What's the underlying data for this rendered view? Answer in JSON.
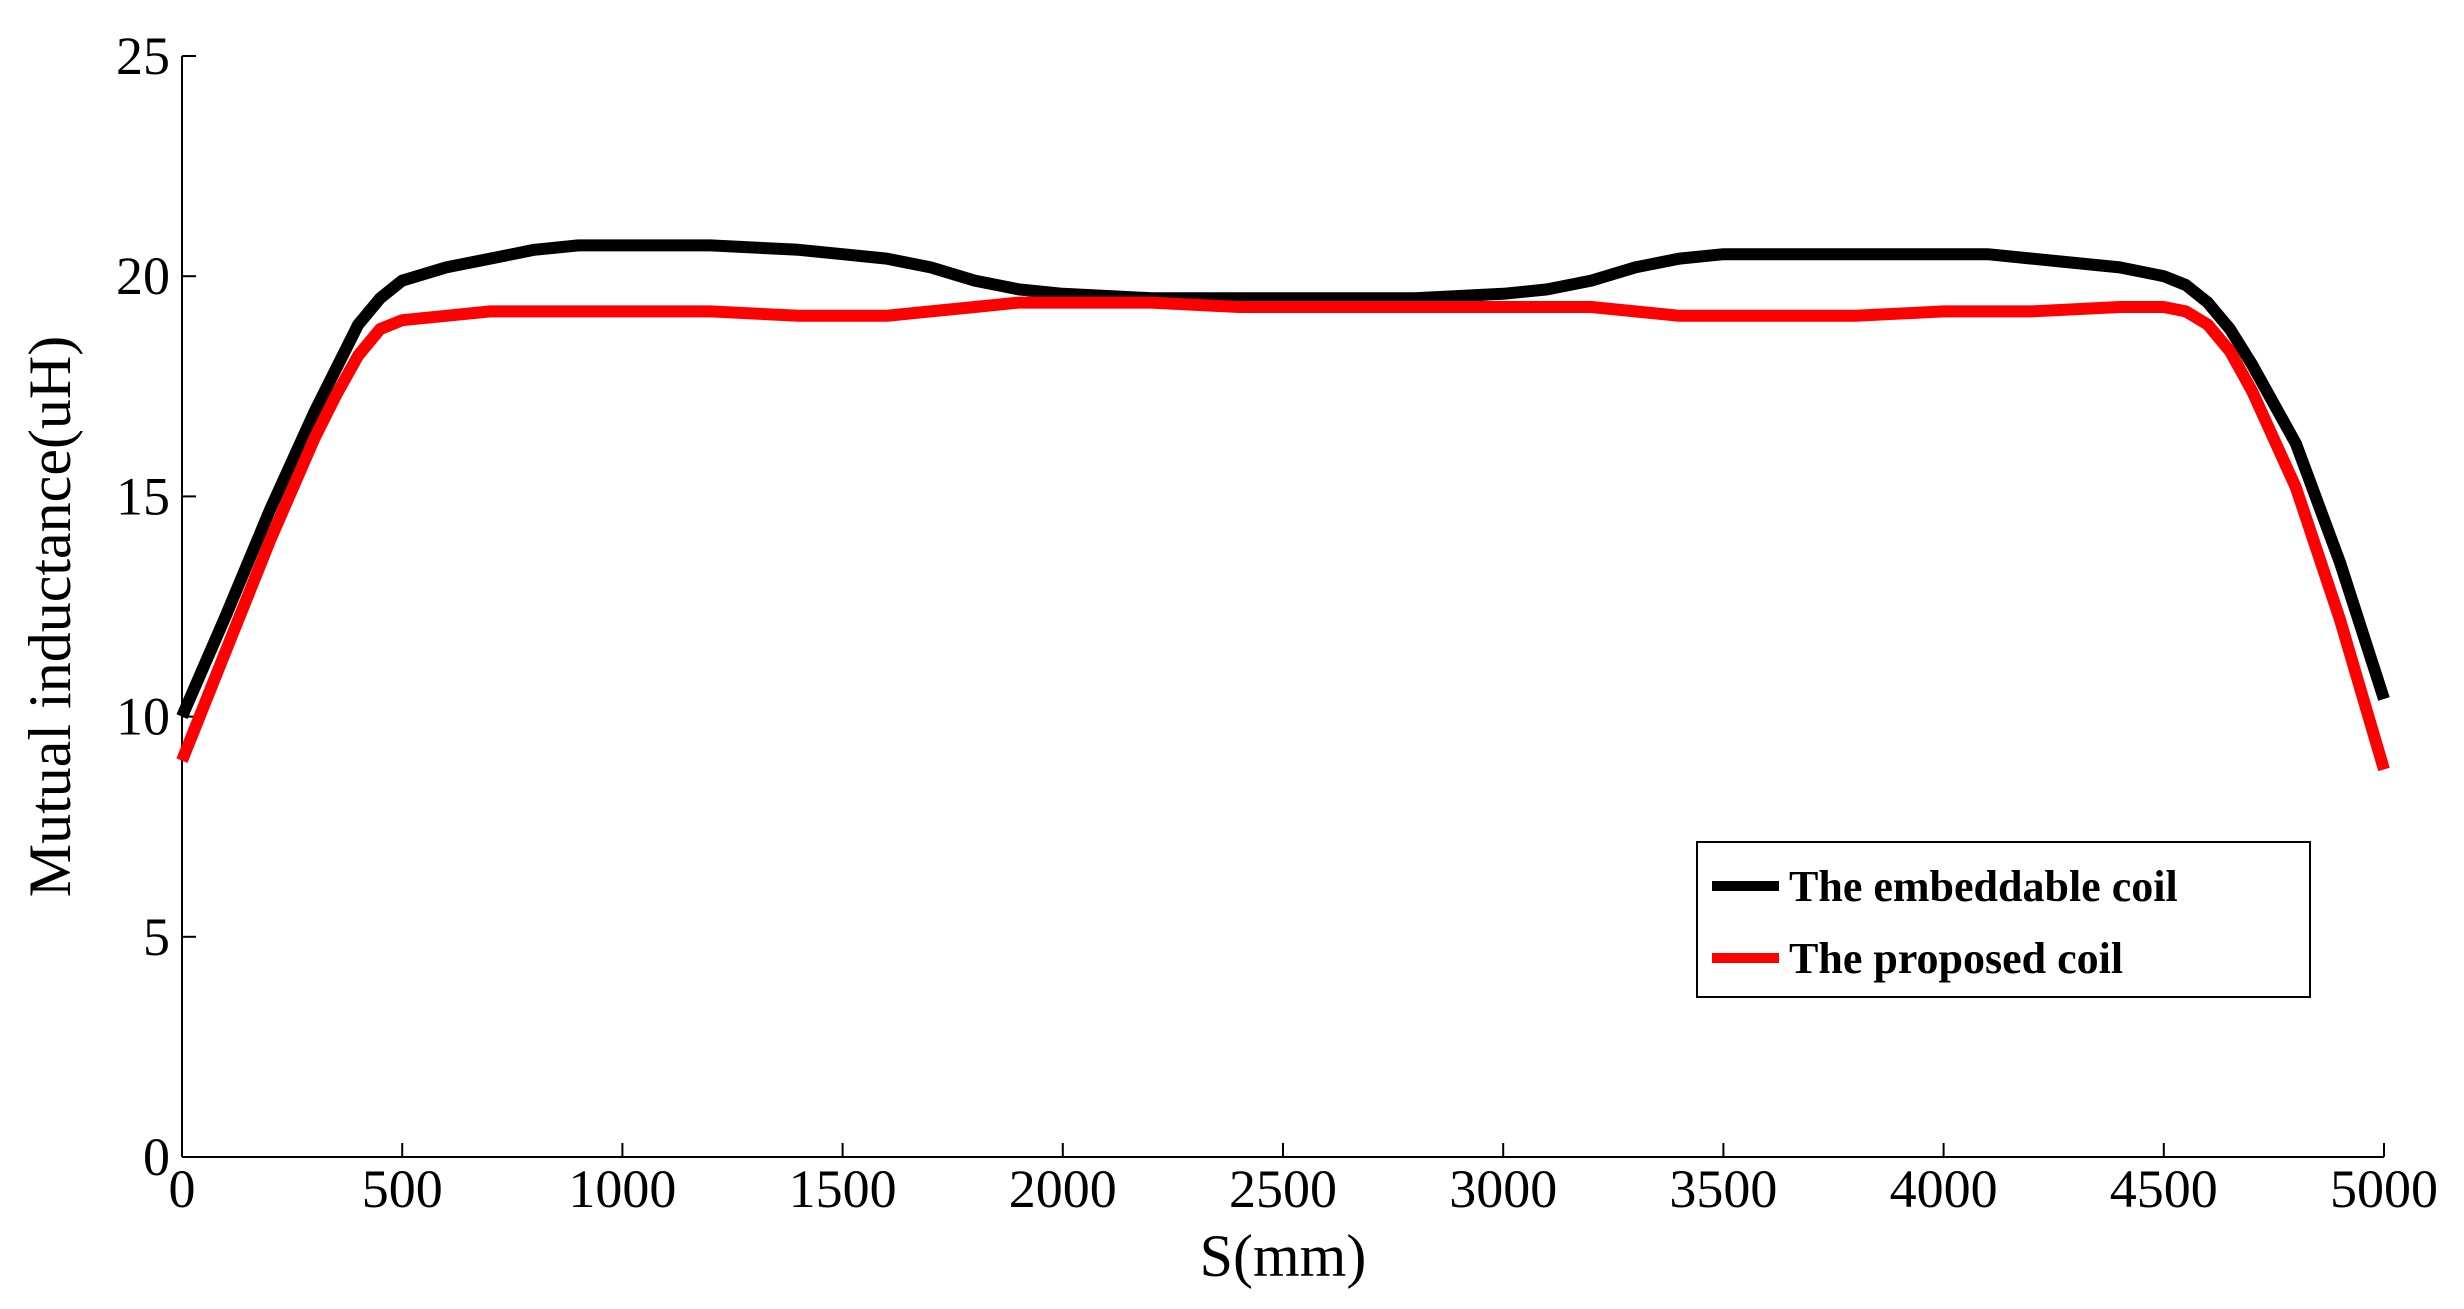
{
  "chart_data": {
    "type": "line",
    "xlabel": "S(mm)",
    "ylabel": "Mutual inductance(uH)",
    "xlim": [
      0,
      5000
    ],
    "ylim": [
      0,
      25
    ],
    "xticks": [
      0,
      500,
      1000,
      1500,
      2000,
      2500,
      3000,
      3500,
      4000,
      4500,
      5000
    ],
    "yticks": [
      0,
      5,
      10,
      15,
      20,
      25
    ],
    "grid": false,
    "legend_position": "lower-right",
    "series": [
      {
        "name": "The embeddable coil",
        "color": "#000000",
        "x": [
          0,
          100,
          200,
          300,
          350,
          400,
          450,
          500,
          600,
          700,
          800,
          900,
          1000,
          1200,
          1400,
          1500,
          1600,
          1700,
          1800,
          1900,
          2000,
          2200,
          2400,
          2600,
          2800,
          3000,
          3100,
          3200,
          3300,
          3400,
          3500,
          3700,
          3900,
          4100,
          4200,
          4300,
          4400,
          4500,
          4550,
          4600,
          4650,
          4700,
          4800,
          4900,
          5000
        ],
        "y": [
          10.0,
          12.3,
          14.7,
          16.9,
          17.9,
          18.9,
          19.5,
          19.9,
          20.2,
          20.4,
          20.6,
          20.7,
          20.7,
          20.7,
          20.6,
          20.5,
          20.4,
          20.2,
          19.9,
          19.7,
          19.6,
          19.5,
          19.5,
          19.5,
          19.5,
          19.6,
          19.7,
          19.9,
          20.2,
          20.4,
          20.5,
          20.5,
          20.5,
          20.5,
          20.4,
          20.3,
          20.2,
          20.0,
          19.8,
          19.4,
          18.8,
          18.0,
          16.2,
          13.5,
          10.4
        ]
      },
      {
        "name": "The proposed coil",
        "color": "#ff0000",
        "x": [
          0,
          100,
          200,
          300,
          350,
          400,
          450,
          500,
          600,
          700,
          800,
          900,
          1000,
          1200,
          1400,
          1500,
          1600,
          1700,
          1800,
          1900,
          2000,
          2200,
          2400,
          2600,
          2800,
          3000,
          3200,
          3400,
          3600,
          3800,
          4000,
          4200,
          4400,
          4500,
          4550,
          4600,
          4650,
          4700,
          4800,
          4900,
          5000
        ],
        "y": [
          9.0,
          11.5,
          14.0,
          16.3,
          17.3,
          18.2,
          18.8,
          19.0,
          19.1,
          19.2,
          19.2,
          19.2,
          19.2,
          19.2,
          19.1,
          19.1,
          19.1,
          19.2,
          19.3,
          19.4,
          19.4,
          19.4,
          19.3,
          19.3,
          19.3,
          19.3,
          19.3,
          19.1,
          19.1,
          19.1,
          19.2,
          19.2,
          19.3,
          19.3,
          19.2,
          18.9,
          18.3,
          17.4,
          15.2,
          12.2,
          8.8
        ]
      }
    ]
  }
}
